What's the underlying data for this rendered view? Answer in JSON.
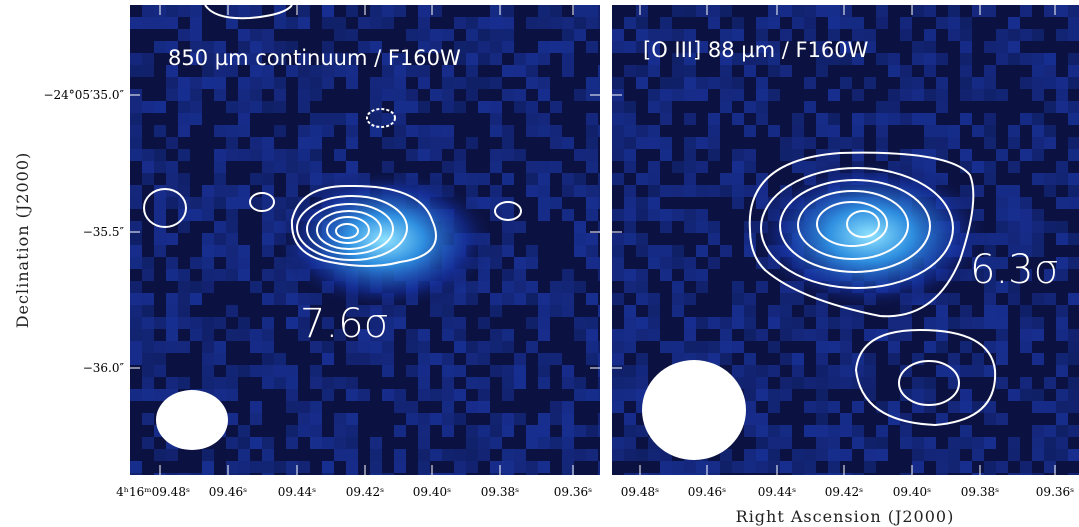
{
  "panels": [
    {
      "title": "850 µm continuum / F160W",
      "significance": "7.6σ",
      "x_ticks": [
        "4ʰ16ᵐ09.48ˢ",
        "09.46ˢ",
        "09.44ˢ",
        "09.42ˢ",
        "09.40ˢ",
        "09.38ˢ",
        "09.36ˢ"
      ]
    },
    {
      "title": "[O III] 88 µm / F160W",
      "significance": "6.3σ",
      "x_ticks": [
        "09.48ˢ",
        "09.46ˢ",
        "09.44ˢ",
        "09.42ˢ",
        "09.40ˢ",
        "09.38ˢ",
        "09.36ˢ"
      ]
    }
  ],
  "y_ticks": [
    "−24°05′35.0″",
    "−35.5″",
    "−36.0″"
  ],
  "y_axis_title": "Declination (J2000)",
  "x_axis_title": "Right Ascension (J2000)"
}
